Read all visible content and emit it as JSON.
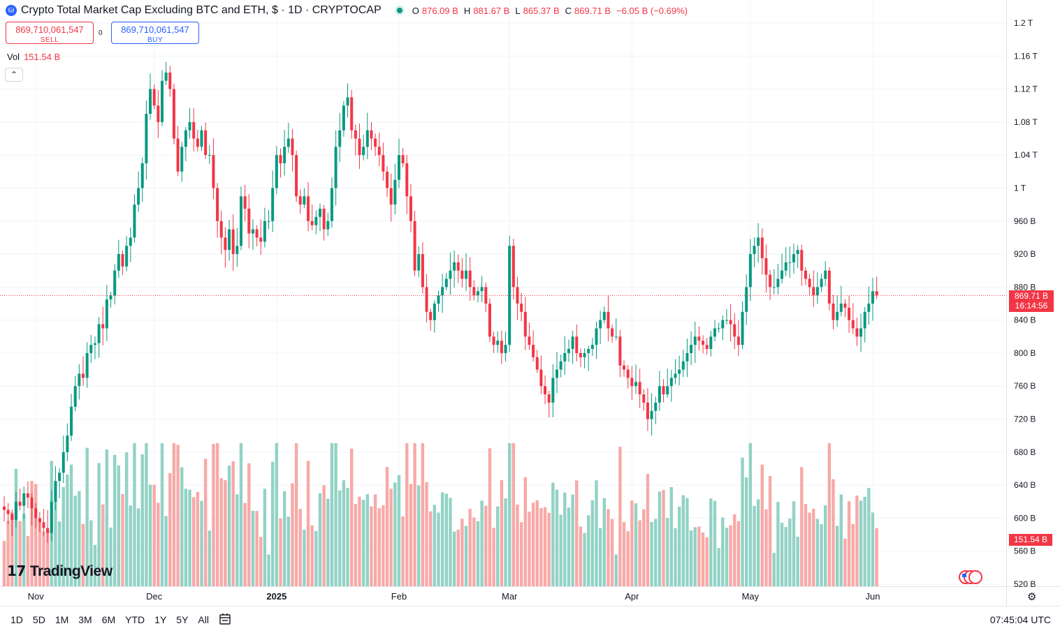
{
  "header": {
    "title": "Crypto Total Market Cap Excluding BTC and ETH, $ · 1D · CRYPTOCAP",
    "ohlc": [
      {
        "k": "O",
        "v": "876.09 B"
      },
      {
        "k": "H",
        "v": "881.67 B"
      },
      {
        "k": "L",
        "v": "865.37 B"
      },
      {
        "k": "C",
        "v": "869.71 B"
      },
      {
        "k": "",
        "v": "−6.05 B (−0.69%)"
      }
    ]
  },
  "trade": {
    "sell_value": "869,710,061,547",
    "sell_label": "SELL",
    "spread": "0",
    "buy_value": "869,710,061,547",
    "buy_label": "BUY"
  },
  "volume": {
    "label": "Vol",
    "value": "151.54 B"
  },
  "price_tag": {
    "price": "869.71 B",
    "countdown": "16:14:56"
  },
  "vol_tag": "151.54 B",
  "logo": "TradingView",
  "ranges": [
    "1D",
    "5D",
    "1M",
    "3M",
    "6M",
    "YTD",
    "1Y",
    "5Y",
    "All"
  ],
  "clock": "07:45:04 UTC",
  "colors": {
    "up": "#089981",
    "down": "#f23645",
    "vol_up": "#92d2c5",
    "vol_down": "#f7a9a7",
    "grid": "#f0f3fa"
  },
  "chart_data": {
    "type": "candlestick",
    "y_axis_ticks": [
      "1.2 T",
      "1.16 T",
      "1.12 T",
      "1.08 T",
      "1.04 T",
      "1 T",
      "960 B",
      "920 B",
      "880 B",
      "840 B",
      "800 B",
      "760 B",
      "720 B",
      "680 B",
      "640 B",
      "600 B",
      "560 B",
      "520 B"
    ],
    "y_axis_values": [
      1200,
      1160,
      1120,
      1080,
      1040,
      1000,
      960,
      920,
      880,
      840,
      800,
      760,
      720,
      680,
      640,
      600,
      560,
      520
    ],
    "ylim": [
      513,
      1206
    ],
    "x_axis_ticks": [
      {
        "label": "Nov",
        "date": "2024-11-01"
      },
      {
        "label": "Dec",
        "date": "2024-12-01"
      },
      {
        "label": "2025",
        "date": "2025-01-01",
        "bold": true
      },
      {
        "label": "Feb",
        "date": "2025-02-01"
      },
      {
        "label": "Mar",
        "date": "2025-03-01"
      },
      {
        "label": "Apr",
        "date": "2025-04-01"
      },
      {
        "label": "May",
        "date": "2025-05-01"
      },
      {
        "label": "Jun",
        "date": "2025-06-01"
      }
    ],
    "last_close": 869.71,
    "start_date": "2024-10-24",
    "close_series_billions": [
      610,
      605,
      598,
      620,
      615,
      630,
      625,
      612,
      600,
      595,
      588,
      582,
      620,
      645,
      655,
      680,
      700,
      735,
      760,
      775,
      770,
      800,
      810,
      812,
      835,
      830,
      865,
      870,
      900,
      920,
      905,
      930,
      940,
      980,
      1000,
      1030,
      1090,
      1120,
      1100,
      1080,
      1130,
      1140,
      1120,
      1060,
      1020,
      1050,
      1070,
      1080,
      1060,
      1050,
      1070,
      1040,
      1040,
      1000,
      960,
      940,
      925,
      950,
      920,
      930,
      990,
      975,
      945,
      950,
      940,
      935,
      960,
      960,
      1000,
      1040,
      1030,
      1050,
      1060,
      1040,
      990,
      980,
      990,
      960,
      955,
      965,
      975,
      950,
      960,
      1000,
      1050,
      1070,
      1100,
      1110,
      1070,
      1060,
      1040,
      1050,
      1070,
      1060,
      1050,
      1040,
      1020,
      1000,
      980,
      1010,
      1040,
      1030,
      990,
      960,
      900,
      920,
      880,
      850,
      840,
      860,
      870,
      880,
      890,
      900,
      910,
      900,
      890,
      900,
      880,
      870,
      875,
      880,
      860,
      820,
      810,
      815,
      800,
      810,
      930,
      880,
      860,
      850,
      820,
      810,
      795,
      780,
      760,
      750,
      740,
      770,
      780,
      790,
      800,
      805,
      820,
      800,
      795,
      800,
      805,
      810,
      830,
      840,
      850,
      830,
      820,
      820,
      785,
      780,
      770,
      760,
      765,
      750,
      740,
      720,
      730,
      740,
      760,
      750,
      760,
      770,
      775,
      780,
      790,
      800,
      810,
      820,
      815,
      810,
      805,
      820,
      830,
      830,
      840,
      840,
      835,
      820,
      810,
      850,
      880,
      920,
      930,
      940,
      915,
      895,
      880,
      880,
      890,
      900,
      910,
      910,
      920,
      925,
      900,
      890,
      880,
      870,
      880,
      890,
      900,
      860,
      840,
      850,
      860,
      855,
      840,
      830,
      820,
      830,
      850,
      860,
      875,
      870
    ]
  }
}
